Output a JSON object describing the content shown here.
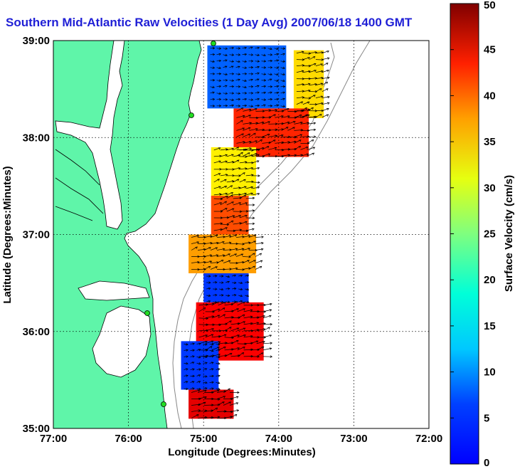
{
  "title": "Southern Mid-Atlantic Raw Velocities (1 Day Avg) 2007/06/18 1400 GMT",
  "map": {
    "xlabel": "Longitude (Degrees:Minutes)",
    "ylabel": "Latitude (Degrees:Minutes)",
    "lon_range": [
      -77,
      -72
    ],
    "lat_range": [
      35,
      39
    ],
    "lon_ticks": [
      "77:00",
      "76:00",
      "75:00",
      "74:00",
      "73:00",
      "72:00"
    ],
    "lat_ticks": [
      "39:00",
      "38:00",
      "37:00",
      "36:00",
      "35:00"
    ],
    "grid": true,
    "land_color": "#5ff5a9",
    "vector_color": "#000000"
  },
  "colorbar": {
    "label": "Surface Velocity (cm/s)",
    "range": [
      0,
      50
    ],
    "ticks": [
      "0",
      "5",
      "10",
      "15",
      "20",
      "25",
      "30",
      "35",
      "40",
      "45",
      "50"
    ],
    "colormap": "jet"
  },
  "chart_data": {
    "type": "heatmap",
    "title": "Southern Mid-Atlantic Raw Velocities (1 Day Avg) 2007/06/18 1400 GMT",
    "xlabel": "Longitude (Degrees:Minutes)",
    "ylabel": "Latitude (Degrees:Minutes)",
    "xlim": [
      -77,
      -72
    ],
    "ylim": [
      35,
      39
    ],
    "zlabel": "Surface Velocity (cm/s)",
    "zlim": [
      0,
      50
    ],
    "regions": [
      {
        "lat": [
          38.3,
          38.95
        ],
        "lon": [
          -74.95,
          -73.9
        ],
        "speed": 11
      },
      {
        "lat": [
          38.2,
          38.9
        ],
        "lon": [
          -73.8,
          -73.4
        ],
        "speed": 33
      },
      {
        "lat": [
          37.8,
          38.3
        ],
        "lon": [
          -74.6,
          -73.6
        ],
        "speed": 42
      },
      {
        "lat": [
          37.4,
          37.9
        ],
        "lon": [
          -74.9,
          -74.3
        ],
        "speed": 32
      },
      {
        "lat": [
          37.0,
          37.4
        ],
        "lon": [
          -74.9,
          -74.4
        ],
        "speed": 40
      },
      {
        "lat": [
          36.6,
          37.0
        ],
        "lon": [
          -75.2,
          -74.3
        ],
        "speed": 36
      },
      {
        "lat": [
          36.3,
          36.6
        ],
        "lon": [
          -75.0,
          -74.4
        ],
        "speed": 9
      },
      {
        "lat": [
          35.7,
          36.3
        ],
        "lon": [
          -75.1,
          -74.2
        ],
        "speed": 44
      },
      {
        "lat": [
          35.4,
          35.9
        ],
        "lon": [
          -75.3,
          -74.8
        ],
        "speed": 9
      },
      {
        "lat": [
          35.1,
          35.4
        ],
        "lon": [
          -75.2,
          -74.6
        ],
        "speed": 45
      }
    ]
  }
}
